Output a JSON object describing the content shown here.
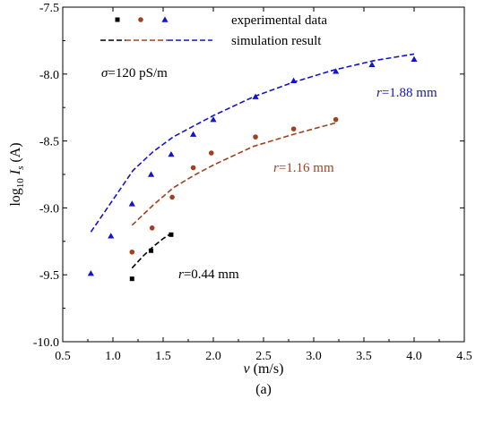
{
  "chart_data": {
    "type": "scatter",
    "title": "",
    "subfigure_label": "(a)",
    "xlabel": {
      "symbol": "v",
      "rest": " (m/s)"
    },
    "ylabel": {
      "prefix": "log",
      "sub1": "10",
      "mid": " I",
      "sub2": "s",
      "suffix": " (A)"
    },
    "xlim": [
      0.5,
      4.5
    ],
    "ylim": [
      -10.0,
      -7.5
    ],
    "xticks": [
      0.5,
      1.0,
      1.5,
      2.0,
      2.5,
      3.0,
      3.5,
      4.0,
      4.5
    ],
    "xtick_labels": [
      "0.5",
      "1.0",
      "1.5",
      "2.0",
      "2.5",
      "3.0",
      "3.5",
      "4.0",
      "4.5"
    ],
    "yticks": [
      -10.0,
      -9.5,
      -9.0,
      -8.5,
      -8.0,
      -7.5
    ],
    "ytick_labels": [
      "-10.0",
      "-9.5",
      "-9.0",
      "-8.5",
      "-8.0",
      "-7.5"
    ],
    "grid": false,
    "legend": {
      "position": "top",
      "experimental_label": "experimental data",
      "simulation_label": "simulation result"
    },
    "conductivity_annotation": {
      "symbol": "σ",
      "text": "=120 pS/m"
    },
    "series": [
      {
        "label": {
          "symbol": "r",
          "text": "=0.44 mm"
        },
        "color": "#000000",
        "marker": "square",
        "experimental": {
          "x": [
            1.19,
            1.38,
            1.58
          ],
          "y": [
            -9.53,
            -9.32,
            -9.2
          ]
        },
        "simulation": {
          "x": [
            1.19,
            1.3,
            1.4,
            1.5,
            1.58
          ],
          "y": [
            -9.45,
            -9.36,
            -9.29,
            -9.23,
            -9.19
          ]
        }
      },
      {
        "label": {
          "symbol": "r",
          "text": "=1.16 mm"
        },
        "color": "#a0401f",
        "marker": "circle",
        "experimental": {
          "x": [
            1.19,
            1.39,
            1.59,
            1.8,
            1.98,
            2.42,
            2.8,
            3.22
          ],
          "y": [
            -9.33,
            -9.15,
            -8.92,
            -8.7,
            -8.59,
            -8.47,
            -8.41,
            -8.34
          ]
        },
        "simulation": {
          "x": [
            1.19,
            1.4,
            1.6,
            1.8,
            2.0,
            2.4,
            2.8,
            3.24
          ],
          "y": [
            -9.13,
            -8.98,
            -8.85,
            -8.76,
            -8.68,
            -8.54,
            -8.45,
            -8.36
          ]
        }
      },
      {
        "label": {
          "symbol": "r",
          "text": "=1.88 mm"
        },
        "color": "#1414c8",
        "marker": "triangle",
        "experimental": {
          "x": [
            0.78,
            0.98,
            1.19,
            1.38,
            1.58,
            1.8,
            2.0,
            2.42,
            2.8,
            3.22,
            3.58,
            4.0
          ],
          "y": [
            -9.49,
            -9.21,
            -8.97,
            -8.75,
            -8.6,
            -8.45,
            -8.34,
            -8.17,
            -8.05,
            -7.98,
            -7.93,
            -7.89
          ]
        },
        "simulation": {
          "x": [
            0.78,
            1.0,
            1.2,
            1.4,
            1.6,
            1.8,
            2.0,
            2.4,
            2.8,
            3.2,
            3.6,
            4.0
          ],
          "y": [
            -9.18,
            -8.94,
            -8.72,
            -8.58,
            -8.47,
            -8.39,
            -8.31,
            -8.17,
            -8.06,
            -7.97,
            -7.9,
            -7.85
          ]
        }
      }
    ]
  }
}
